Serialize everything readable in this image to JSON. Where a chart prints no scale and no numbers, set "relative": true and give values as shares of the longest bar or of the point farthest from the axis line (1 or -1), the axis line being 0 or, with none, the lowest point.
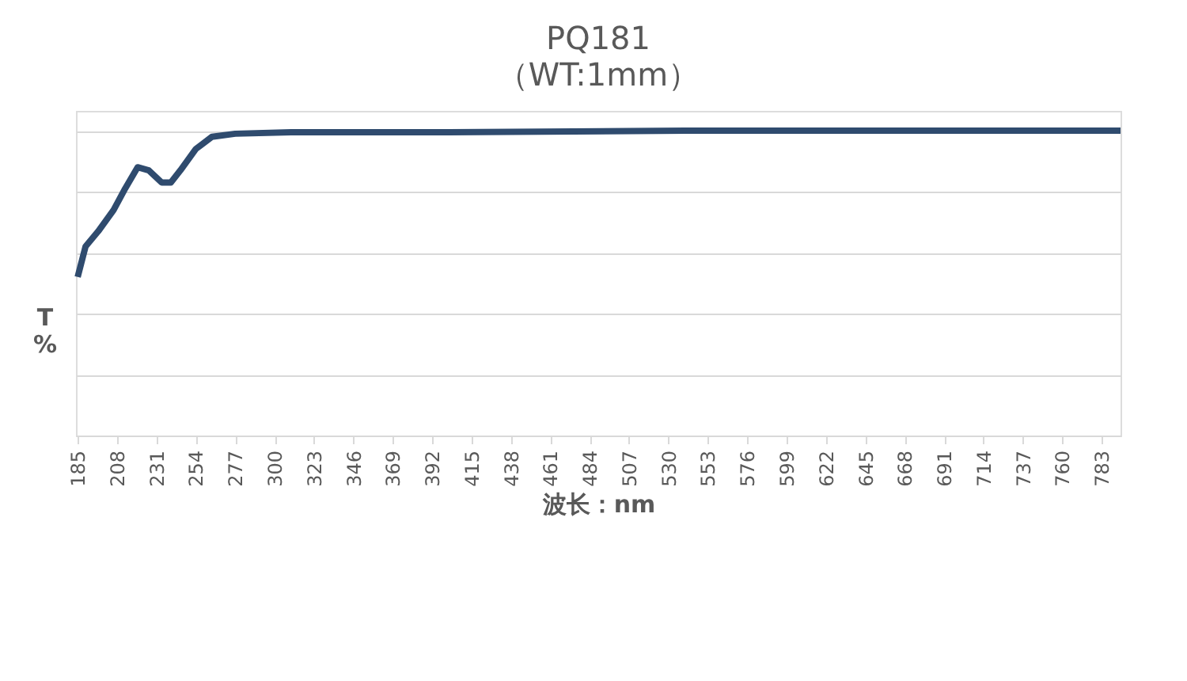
{
  "chart_data": {
    "type": "line",
    "title": "PQ181",
    "subtitle": "（WT:1mm）",
    "xlabel": "波长：nm",
    "ylabel": "T\n%",
    "relative": true,
    "grid": "y",
    "legend": false,
    "marker": "none",
    "line_style": "solid",
    "xlim": [
      184,
      794
    ],
    "xticks": [
      185,
      208,
      231,
      254,
      277,
      300,
      323,
      346,
      369,
      392,
      415,
      438,
      461,
      484,
      507,
      530,
      553,
      576,
      599,
      622,
      645,
      668,
      691,
      714,
      737,
      760,
      783
    ],
    "x": [
      185,
      189.6,
      197,
      206,
      212.7,
      220,
      226.5,
      234,
      239.4,
      245,
      254,
      263.4,
      277,
      309.6,
      402,
      540,
      679,
      794
    ],
    "series": [
      {
        "color": "#2f4b6e",
        "values": [
          0.52,
          0.62,
          0.67,
          0.74,
          0.81,
          0.88,
          0.87,
          0.83,
          0.83,
          0.87,
          0.94,
          0.98,
          0.99,
          0.995,
          0.995,
          1.0,
          1.0,
          1.0
        ]
      }
    ]
  }
}
